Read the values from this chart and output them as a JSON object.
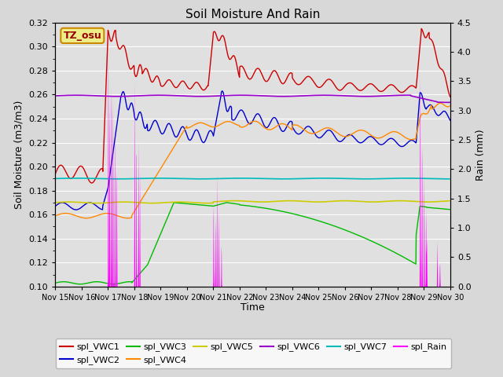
{
  "title": "Soil Moisture And Rain",
  "xlabel": "Time",
  "ylabel_left": "Soil Moisture (m3/m3)",
  "ylabel_right": "Rain (mm)",
  "station_label": "TZ_osu",
  "ylim_left": [
    0.1,
    0.32
  ],
  "ylim_right": [
    0.0,
    4.5
  ],
  "bg_color": "#d8d8d8",
  "plot_bg_color": "#e0e0e0",
  "line_colors": {
    "VWC1": "#cc0000",
    "VWC2": "#0000cc",
    "VWC3": "#00bb00",
    "VWC4": "#ff8800",
    "VWC5": "#cccc00",
    "VWC6": "#9900cc",
    "VWC7": "#00bbbb",
    "Rain": "#ff00ff"
  },
  "legend_labels": [
    "spl_VWC1",
    "spl_VWC2",
    "spl_VWC3",
    "spl_VWC4",
    "spl_VWC5",
    "spl_VWC6",
    "spl_VWC7",
    "spl_Rain"
  ],
  "xtick_labels": [
    "Nov 15",
    "Nov 16",
    "Nov 17",
    "Nov 18",
    "Nov 19",
    "Nov 20",
    "Nov 21",
    "Nov 22",
    "Nov 23",
    "Nov 24",
    "Nov 25",
    "Nov 26",
    "Nov 27",
    "Nov 28",
    "Nov 29",
    "Nov 30"
  ],
  "n_days": 15,
  "points_per_day": 96
}
